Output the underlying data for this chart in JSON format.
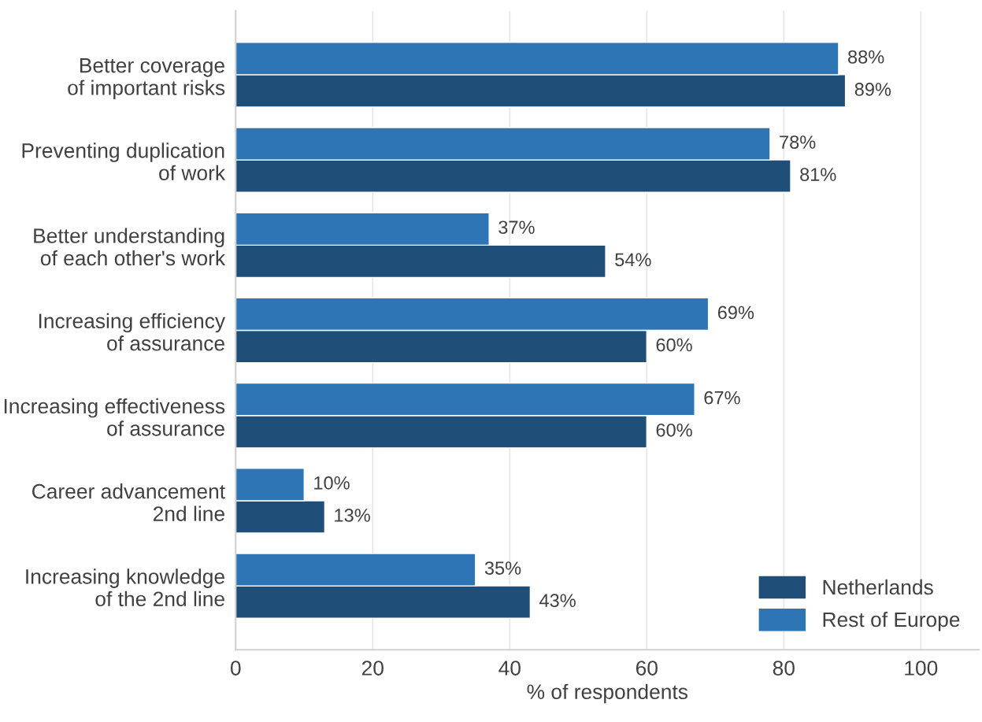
{
  "chart_data": {
    "type": "bar",
    "orientation": "horizontal",
    "xlabel": "% of respondents",
    "categories": [
      "Better coverage\nof important risks",
      "Preventing duplication\nof work",
      "Better understanding\nof each other's work",
      "Increasing efficiency\nof assurance",
      "Increasing effectiveness\nof assurance",
      "Career advancement\n2nd line",
      "Increasing knowledge\nof the 2nd line"
    ],
    "series": [
      {
        "name": "Netherlands",
        "color": "#1f4e79",
        "values": [
          89,
          81,
          54,
          60,
          60,
          13,
          43
        ],
        "value_labels": [
          "89%",
          "81%",
          "54%",
          "60%",
          "60%",
          "13%",
          "43%"
        ]
      },
      {
        "name": "Rest of Europe",
        "color": "#2e75b6",
        "values": [
          88,
          78,
          37,
          69,
          67,
          10,
          35
        ],
        "value_labels": [
          "88%",
          "78%",
          "37%",
          "69%",
          "67%",
          "10%",
          "35%"
        ]
      }
    ],
    "xlim": [
      0,
      108.5
    ],
    "xticks": [
      0,
      20,
      40,
      60,
      80,
      100
    ],
    "grid": "x",
    "legend": "bottom right"
  }
}
